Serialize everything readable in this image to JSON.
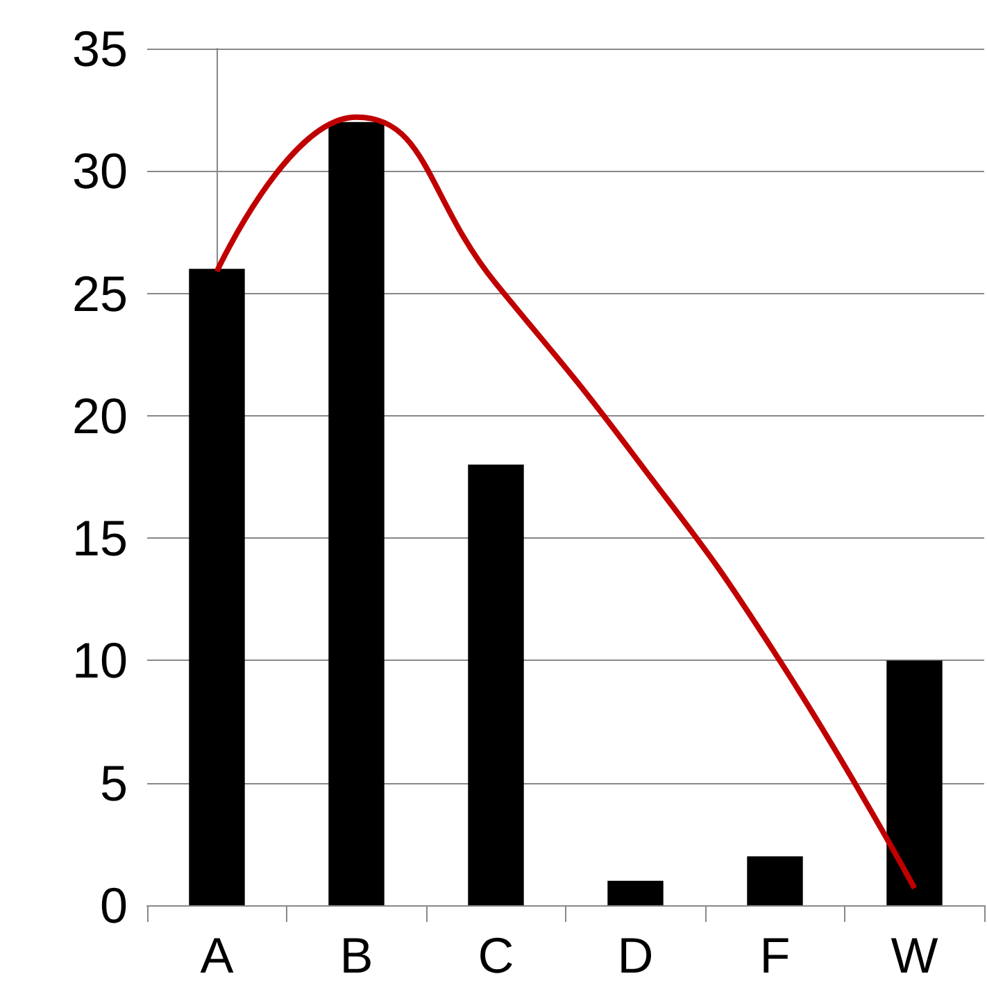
{
  "chart_data": {
    "type": "bar",
    "categories": [
      "A",
      "B",
      "C",
      "D",
      "F",
      "W"
    ],
    "series": [
      {
        "color": "#000000",
        "values": [
          26,
          32,
          18,
          1,
          2,
          10
        ]
      },
      {
        "type": "line",
        "color": "#c00000",
        "marker": "none",
        "line_style": "solid",
        "values": [
          25.9,
          32.2,
          25.4,
          18.3,
          10.3,
          0.7
        ]
      }
    ],
    "ylim": [
      0,
      35
    ],
    "yticks": [
      0,
      5,
      10,
      15,
      20,
      25,
      30,
      35
    ],
    "grid": "y"
  }
}
